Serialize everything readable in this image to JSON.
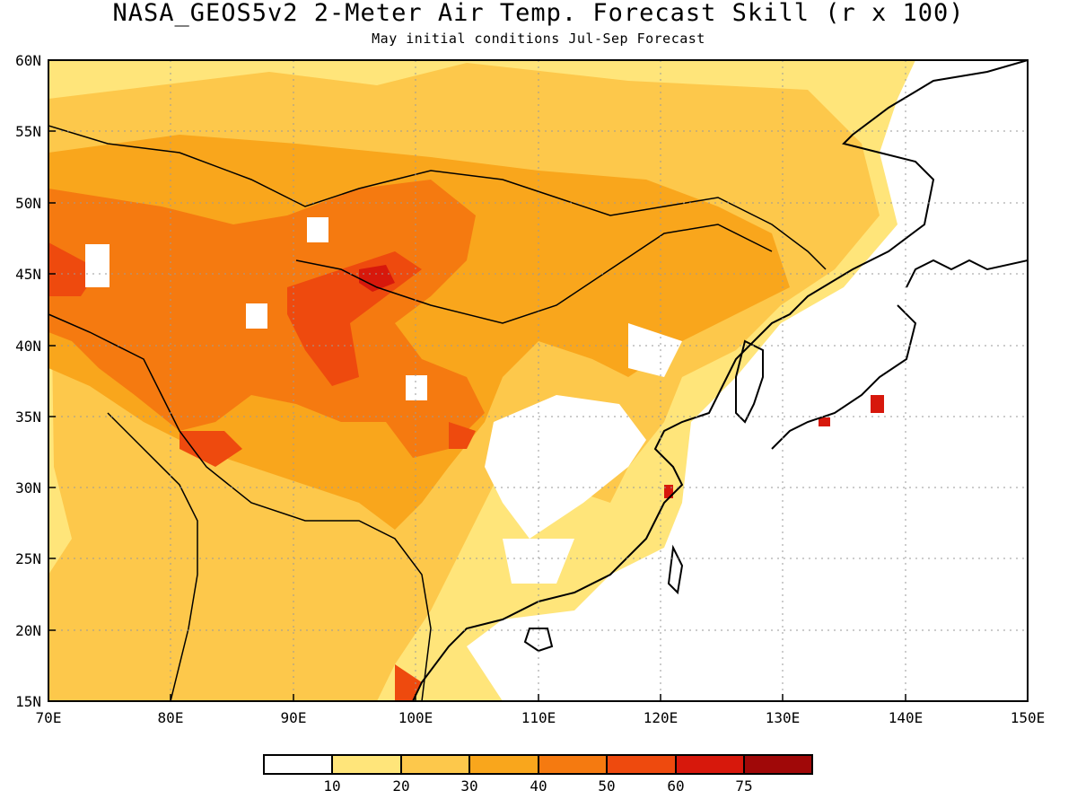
{
  "map": {
    "title": "NASA_GEOS5v2 2-Meter Air Temp. Forecast Skill (r x 100)",
    "subtitle": "May initial conditions  Jul-Sep Forecast",
    "lat_labels": [
      "60N",
      "55N",
      "50N",
      "45N",
      "40N",
      "35N",
      "30N",
      "25N",
      "20N",
      "15N"
    ],
    "lon_labels": [
      "70E",
      "80E",
      "90E",
      "100E",
      "110E",
      "120E",
      "130E",
      "140E",
      "150E"
    ],
    "lat_range": [
      15,
      60
    ],
    "lon_range": [
      70,
      150
    ],
    "colors": {
      "bin0": "#ffffff",
      "bin1": "#ffe57a",
      "bin2": "#fdc84b",
      "bin3": "#f9a61c",
      "bin4": "#f57a10",
      "bin5": "#ee4a0e",
      "bin6": "#d7180c",
      "bin7": "#a00808"
    }
  },
  "colorbar": {
    "labels": [
      "10",
      "20",
      "30",
      "40",
      "50",
      "60",
      "75"
    ]
  }
}
